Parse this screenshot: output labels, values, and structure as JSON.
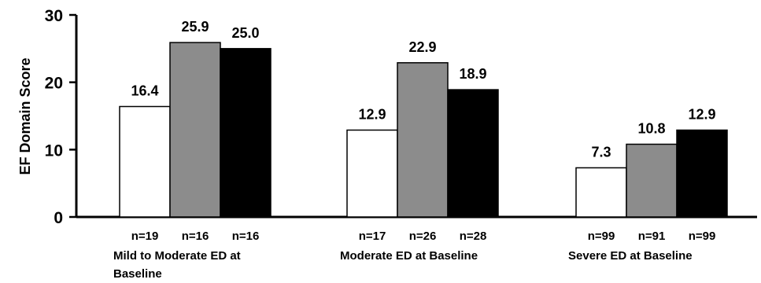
{
  "chart_data": {
    "type": "bar",
    "ylabel": "EF Domain Score",
    "ylim": [
      0,
      30
    ],
    "yticks": [
      0,
      10,
      20,
      30
    ],
    "grid": false,
    "groups": [
      {
        "label_lines": [
          "Mild to Moderate ED at",
          "Baseline"
        ],
        "values": [
          16.4,
          25.9,
          25.0
        ],
        "value_labels": [
          "16.4",
          "25.9",
          "25.0"
        ],
        "n_labels": [
          "n=19",
          "n=16",
          "n=16"
        ]
      },
      {
        "label_lines": [
          "Moderate ED at Baseline"
        ],
        "values": [
          12.9,
          22.9,
          18.9
        ],
        "value_labels": [
          "12.9",
          "22.9",
          "18.9"
        ],
        "n_labels": [
          "n=17",
          "n=26",
          "n=28"
        ]
      },
      {
        "label_lines": [
          "Severe ED at Baseline"
        ],
        "values": [
          7.3,
          10.8,
          12.9
        ],
        "value_labels": [
          "7.3",
          "10.8",
          "12.9"
        ],
        "n_labels": [
          "n=99",
          "n=91",
          "n=99"
        ]
      }
    ],
    "bar_colors": [
      "#ffffff",
      "#8c8c8c",
      "#000000"
    ]
  }
}
